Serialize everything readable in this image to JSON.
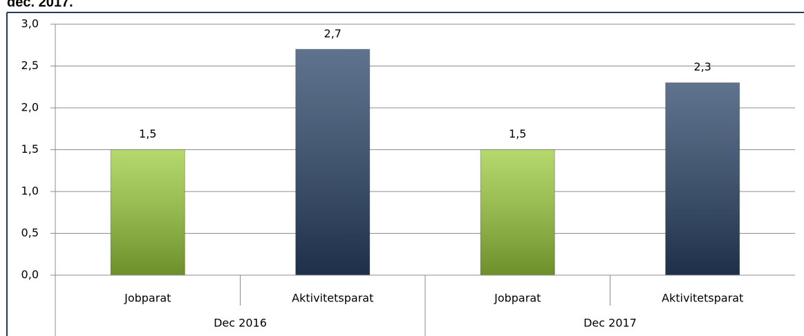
{
  "chart_data": {
    "type": "bar",
    "title": "dec. 2017.",
    "categories": [
      "Jobparat",
      "Aktivitetsparat",
      "Jobparat",
      "Aktivitetsparat"
    ],
    "groups": [
      "Dec 2016",
      "Dec 2017"
    ],
    "values": [
      1.5,
      2.7,
      1.5,
      2.3
    ],
    "value_labels": [
      "1,5",
      "2,7",
      "1,5",
      "2,3"
    ],
    "colors": [
      "#9ccc3c",
      "#2a4468",
      "#9ccc3c",
      "#2a4468"
    ],
    "ylim": [
      0,
      3
    ],
    "yticks": [
      {
        "value": 0,
        "label": "0,0"
      },
      {
        "value": 0.5,
        "label": "0,5"
      },
      {
        "value": 1,
        "label": "1,0"
      },
      {
        "value": 1.5,
        "label": "1,5"
      },
      {
        "value": 2,
        "label": "2,0"
      },
      {
        "value": 2.5,
        "label": "2,5"
      },
      {
        "value": 3,
        "label": "3,0"
      }
    ],
    "grid": true
  }
}
